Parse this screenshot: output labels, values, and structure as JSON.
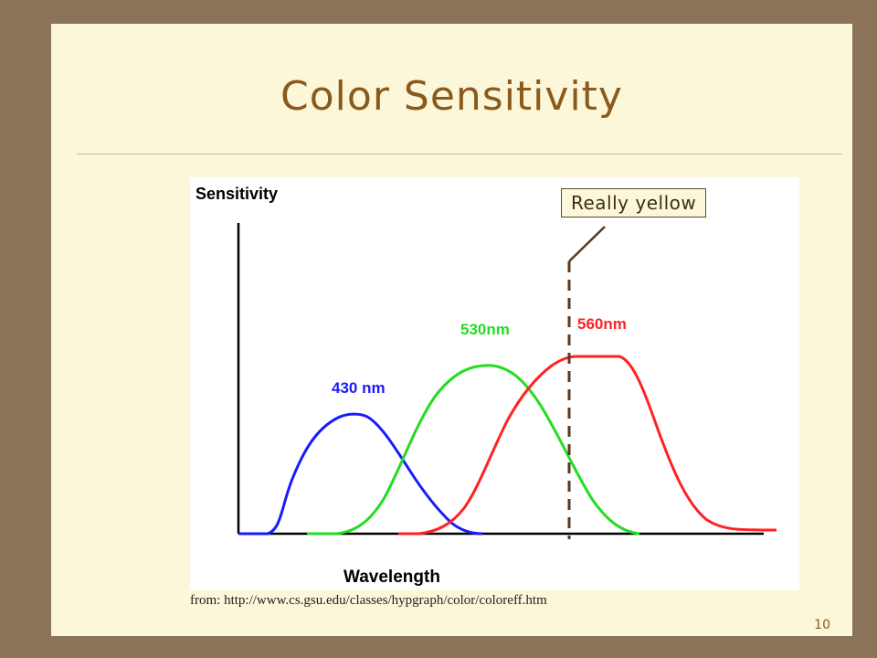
{
  "slide": {
    "title": "Color Sensitivity",
    "callout": "Really yellow",
    "source": "from: http://www.cs.gsu.edu/classes/hypgraph/color/coloreff.htm",
    "page_number": "10"
  },
  "diagram": {
    "ylabel": "Sensitivity",
    "xlabel": "Wavelength",
    "curves": [
      {
        "label": "430 nm",
        "color": "#1a1aff"
      },
      {
        "label": "530nm",
        "color": "#22dd22"
      },
      {
        "label": "560nm",
        "color": "#ff2222"
      }
    ],
    "marker_color": "#5a3a1a"
  }
}
